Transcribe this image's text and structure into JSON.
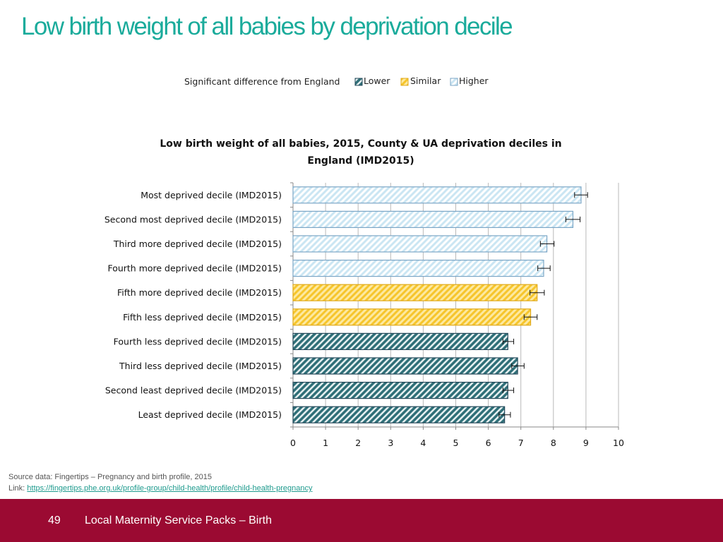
{
  "slide": {
    "title": "Low birth weight of all babies by deprivation decile",
    "source_line": "Source data: Fingertips – Pregnancy and birth profile, 2015",
    "link_prefix": "Link: ",
    "link_text": "https://fingertips.phe.org.uk/profile-group/child-health/profile/child-health-pregnancy",
    "page_number": "49",
    "footer_text": "Local Maternity Service Packs – Birth"
  },
  "colors": {
    "title": "#1aab9b",
    "footer": "#9b0a32",
    "higher_fill": "#d3ebf6",
    "higher_stroke": "#7ba6c6",
    "similar_fill": "#fbd75a",
    "similar_stroke": "#e0a91a",
    "lower_fill": "#3e8c90",
    "lower_stroke": "#24495a"
  },
  "chart_data": {
    "type": "bar",
    "orientation": "horizontal",
    "title": "Low birth weight of all babies, 2015, County & UA deprivation deciles in England (IMD2015)",
    "title_lines": [
      "Low birth weight of all babies, 2015, County & UA deprivation deciles in",
      "England (IMD2015)"
    ],
    "legend": {
      "title": "Significant difference from England",
      "items": [
        {
          "key": "lower",
          "label": "Lower"
        },
        {
          "key": "similar",
          "label": "Similar"
        },
        {
          "key": "higher",
          "label": "Higher"
        }
      ],
      "placement": "top"
    },
    "categories": [
      "Most deprived decile (IMD2015)",
      "Second most deprived decile (IMD2015)",
      "Third more deprived decile (IMD2015)",
      "Fourth more deprived decile (IMD2015)",
      "Fifth more deprived decile (IMD2015)",
      "Fifth less deprived decile (IMD2015)",
      "Fourth less deprived decile (IMD2015)",
      "Third less deprived decile (IMD2015)",
      "Second least deprived decile (IMD2015)",
      "Least deprived decile (IMD2015)"
    ],
    "values": [
      8.85,
      8.6,
      7.8,
      7.7,
      7.5,
      7.3,
      6.6,
      6.9,
      6.6,
      6.5
    ],
    "ci_lower": [
      8.65,
      8.38,
      7.6,
      7.52,
      7.28,
      7.1,
      6.45,
      6.72,
      6.45,
      6.33
    ],
    "ci_upper": [
      9.05,
      8.82,
      8.02,
      7.9,
      7.72,
      7.5,
      6.78,
      7.1,
      6.78,
      6.68
    ],
    "significance": [
      "higher",
      "higher",
      "higher",
      "higher",
      "similar",
      "similar",
      "lower",
      "lower",
      "lower",
      "lower"
    ],
    "xlim": [
      0,
      10
    ],
    "xticks": [
      "0",
      "1",
      "2",
      "3",
      "4",
      "5",
      "6",
      "7",
      "8",
      "9",
      "10"
    ],
    "grid": true,
    "error_bars": true
  }
}
